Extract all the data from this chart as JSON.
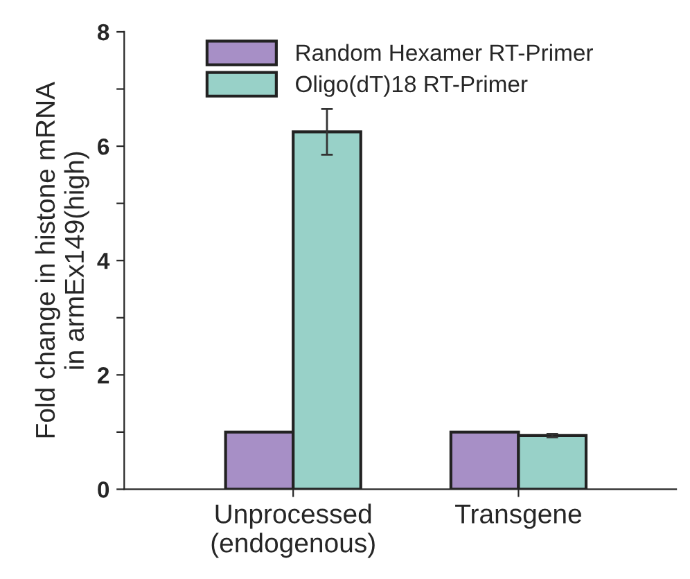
{
  "chart_data": {
    "type": "bar",
    "ylabel": "Fold change in histone mRNA\nin armEx149(high)",
    "categories": [
      "Unprocessed\n(endogenous)",
      "Transgene"
    ],
    "series": [
      {
        "name": "Random Hexamer RT-Primer",
        "color": "#a78fc6",
        "values": [
          1.0,
          1.0
        ]
      },
      {
        "name": "Oligo(dT)18 RT-Primer",
        "color": "#98d1c8",
        "values": [
          6.25,
          0.94
        ],
        "errors": [
          0.4,
          0.03
        ]
      }
    ],
    "ylim": [
      0,
      8
    ],
    "yticks": [
      0,
      {
        "value": 1,
        "label": null
      },
      2,
      {
        "value": 3,
        "label": null
      },
      4,
      {
        "value": 5,
        "label": null
      },
      6,
      {
        "value": 7,
        "label": null
      },
      8
    ],
    "legend": "top",
    "grid": false
  }
}
